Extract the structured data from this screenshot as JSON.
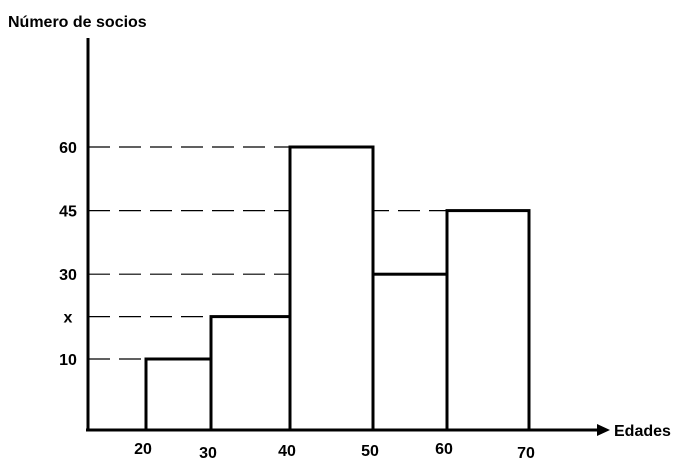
{
  "chart_data": {
    "type": "bar",
    "ylabel": "Número de socios",
    "xlabel": "Edades",
    "x_ticks": [
      "20",
      "30",
      "40",
      "50",
      "60",
      "70"
    ],
    "y_ticks": [
      {
        "value": 10,
        "label": "10"
      },
      {
        "value": 20,
        "label": "x"
      },
      {
        "value": 30,
        "label": "30"
      },
      {
        "value": 45,
        "label": "45"
      },
      {
        "value": 60,
        "label": "60"
      }
    ],
    "bars": [
      {
        "x0": 20,
        "x1": 30,
        "value": 10
      },
      {
        "x0": 30,
        "x1": 40,
        "value": 20
      },
      {
        "x0": 40,
        "x1": 50,
        "value": 60
      },
      {
        "x0": 50,
        "x1": 60,
        "value": 30
      },
      {
        "x0": 60,
        "x1": 70,
        "value": 45
      }
    ],
    "grid": false,
    "dashed_reference_lines": true,
    "bar_fill": "#ffffff",
    "bar_stroke": "#000000"
  }
}
